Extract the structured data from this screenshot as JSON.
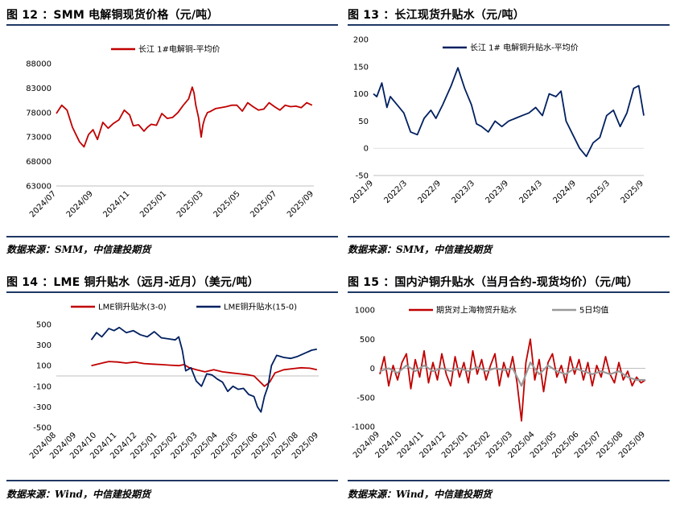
{
  "chart_data": [
    {
      "type": "line",
      "title": "图 12 ：SMM 电解铜现货价格（元/吨）",
      "source": "数据来源：SMM，中信建投期货",
      "ylim": [
        63000,
        88000
      ],
      "yticks": [
        63000,
        68000,
        73000,
        78000,
        83000,
        88000
      ],
      "xticks": [
        "2024/07",
        "2024/09",
        "2024/11",
        "2025/01",
        "2025/03",
        "2025/05",
        "2025/07",
        "2025/09"
      ],
      "legend": "top",
      "series": [
        {
          "name": "长江 1#电解铜-平均价",
          "color": "#c00000",
          "x": [
            0,
            0.3,
            0.6,
            0.9,
            1.1,
            1.3,
            1.55,
            1.8,
            2.05,
            2.3,
            2.6,
            2.9,
            3.2,
            3.5,
            3.8,
            4.1,
            4.3,
            4.6,
            4.9,
            5.1,
            5.3,
            5.6,
            5.9,
            6.2,
            6.5,
            6.8,
            7.1,
            7.4,
            7.6,
            7.7,
            7.8,
            7.95,
            8.1,
            8.2,
            8.3,
            8.45,
            8.6,
            8.9,
            9.2,
            9.5,
            9.8,
            10.1,
            10.4,
            10.7,
            11.0,
            11.3,
            11.6,
            11.9,
            12.2,
            12.5,
            12.8,
            13.1,
            13.4,
            13.7,
            14.0,
            14.3
          ],
          "y": [
            77800,
            79500,
            78500,
            75000,
            73500,
            72000,
            71000,
            73500,
            74500,
            72500,
            76000,
            74800,
            75800,
            76500,
            78500,
            77500,
            75300,
            75500,
            74200,
            75000,
            75600,
            75400,
            77800,
            76800,
            77000,
            78000,
            79500,
            80800,
            83200,
            82000,
            79500,
            77000,
            73000,
            75500,
            76800,
            78000,
            78200,
            78800,
            79000,
            79200,
            79500,
            79500,
            78300,
            80000,
            79200,
            78500,
            78700,
            80000,
            79200,
            78500,
            79500,
            79200,
            79300,
            79000,
            80000,
            79500
          ]
        }
      ]
    },
    {
      "type": "line",
      "title": "图 13 ：长江现货升贴水（元/吨）",
      "source": "数据来源：SMM，中信建投期货",
      "ylim": [
        -50,
        200
      ],
      "yticks": [
        -50,
        0,
        50,
        100,
        150,
        200
      ],
      "xticks": [
        "2021/9",
        "2022/3",
        "2022/9",
        "2023/3",
        "2023/9",
        "2024/3",
        "2024/9",
        "2025/3",
        "2025/9"
      ],
      "legend": "top",
      "series": [
        {
          "name": "长江 1# 电解铜升贴水-平均价",
          "color": "#002060",
          "x": [
            0,
            0.1,
            0.25,
            0.4,
            0.5,
            0.7,
            0.9,
            1.1,
            1.3,
            1.5,
            1.7,
            1.85,
            2.05,
            2.3,
            2.5,
            2.7,
            2.9,
            3.05,
            3.2,
            3.4,
            3.6,
            3.8,
            4.0,
            4.2,
            4.4,
            4.6,
            4.8,
            5.0,
            5.2,
            5.4,
            5.55,
            5.7,
            5.9,
            6.1,
            6.3,
            6.5,
            6.7,
            6.9,
            7.1,
            7.3,
            7.5,
            7.7,
            7.85,
            8.0
          ],
          "y": [
            100,
            95,
            120,
            75,
            95,
            80,
            65,
            30,
            25,
            55,
            70,
            55,
            80,
            115,
            148,
            110,
            80,
            45,
            40,
            30,
            50,
            40,
            50,
            55,
            60,
            65,
            75,
            60,
            100,
            95,
            105,
            50,
            25,
            0,
            -15,
            10,
            20,
            60,
            70,
            40,
            65,
            110,
            115,
            60
          ]
        }
      ]
    },
    {
      "type": "line",
      "title": "图 14 ：LME 铜升贴水（远月-近月）（美元/吨）",
      "source": "数据来源：Wind，中信建投期货",
      "ylim": [
        -500,
        500
      ],
      "yticks": [
        -500,
        -300,
        -100,
        100,
        300,
        500
      ],
      "xticks": [
        "2024/08",
        "2024/09",
        "2024/10",
        "2024/11",
        "2024/12",
        "2025/01",
        "2025/02",
        "2025/03",
        "2025/04",
        "2025/05",
        "2025/06",
        "2025/07",
        "2025/08",
        "2025/09"
      ],
      "legend": "top",
      "series": [
        {
          "name": "LME铜升贴水(3-0)",
          "color": "#c00000",
          "x": [
            1.0,
            1.5,
            2.0,
            2.5,
            3.0,
            3.5,
            4.0,
            4.5,
            5.0,
            5.5,
            6.0,
            6.3,
            6.6,
            7.0,
            7.5,
            8.0,
            8.5,
            9.0,
            9.5,
            10.0,
            10.3,
            10.6,
            10.9,
            11.2,
            11.5,
            12.0,
            12.5,
            13.0,
            13.5,
            13.9
          ],
          "y": [
            100,
            120,
            140,
            135,
            125,
            135,
            120,
            115,
            110,
            105,
            100,
            110,
            80,
            60,
            40,
            60,
            40,
            30,
            20,
            10,
            0,
            -50,
            -100,
            -60,
            30,
            60,
            70,
            80,
            75,
            60
          ]
        },
        {
          "name": "LME铜升贴水(15-0)",
          "color": "#002060",
          "x": [
            1.0,
            1.3,
            1.6,
            2.0,
            2.3,
            2.6,
            3.0,
            3.4,
            3.8,
            4.2,
            4.6,
            5.0,
            5.4,
            5.8,
            6.0,
            6.2,
            6.4,
            6.7,
            7.0,
            7.3,
            7.6,
            7.9,
            8.2,
            8.5,
            8.8,
            9.1,
            9.4,
            9.7,
            10.0,
            10.3,
            10.5,
            10.7,
            10.9,
            11.1,
            11.3,
            11.6,
            12.0,
            12.4,
            12.8,
            13.2,
            13.6,
            13.9
          ],
          "y": [
            350,
            420,
            380,
            460,
            440,
            470,
            420,
            440,
            400,
            380,
            430,
            370,
            360,
            350,
            380,
            250,
            50,
            80,
            -50,
            -100,
            20,
            10,
            -30,
            -60,
            -150,
            -100,
            -130,
            -120,
            -180,
            -200,
            -300,
            -350,
            -200,
            -100,
            100,
            200,
            180,
            170,
            190,
            220,
            250,
            260
          ]
        }
      ]
    },
    {
      "type": "line",
      "title": "图 15 ：国内沪铜升贴水（当月合约-现货均价）（元/吨）",
      "source": "数据来源：Wind，中信建投期货",
      "ylim": [
        -1000,
        1000
      ],
      "yticks": [
        -1000,
        -500,
        0,
        500,
        1000
      ],
      "xticks": [
        "2024/09",
        "2024/10",
        "2024/11",
        "2024/12",
        "2025/01",
        "2025/02",
        "2025/03",
        "2025/04",
        "2025/05",
        "2025/06",
        "2025/07",
        "2025/08",
        "2025/09"
      ],
      "legend": "top",
      "series": [
        {
          "name": "期货对上海物贸升贴水",
          "color": "#c00000",
          "x": [
            0,
            0.2,
            0.4,
            0.6,
            0.8,
            1.0,
            1.2,
            1.4,
            1.6,
            1.8,
            2.0,
            2.2,
            2.4,
            2.6,
            2.8,
            3.0,
            3.2,
            3.4,
            3.6,
            3.8,
            4.0,
            4.2,
            4.4,
            4.6,
            4.8,
            5.0,
            5.2,
            5.4,
            5.6,
            5.8,
            6.0,
            6.2,
            6.4,
            6.6,
            6.8,
            7.0,
            7.2,
            7.4,
            7.6,
            7.8,
            8.0,
            8.2,
            8.4,
            8.6,
            8.8,
            9.0,
            9.2,
            9.4,
            9.6,
            9.8,
            10.0,
            10.2,
            10.4,
            10.6,
            10.8,
            11.0,
            11.2,
            11.4,
            11.6,
            11.8,
            12.0
          ],
          "y": [
            -100,
            200,
            -300,
            50,
            -200,
            100,
            250,
            -350,
            150,
            -150,
            300,
            -250,
            100,
            -200,
            250,
            -100,
            -300,
            200,
            -150,
            100,
            -250,
            300,
            -100,
            150,
            -200,
            50,
            250,
            -300,
            100,
            -150,
            200,
            -250,
            -900,
            100,
            500,
            -200,
            150,
            -400,
            100,
            250,
            -150,
            50,
            -250,
            200,
            -100,
            150,
            -200,
            100,
            -300,
            50,
            -150,
            200,
            -100,
            -250,
            100,
            -200,
            -50,
            -300,
            -150,
            -250,
            -200
          ]
        },
        {
          "name": "5日均值",
          "color": "#999999",
          "x": [
            0,
            0.4,
            0.8,
            1.2,
            1.6,
            2.0,
            2.4,
            2.8,
            3.2,
            3.6,
            4.0,
            4.4,
            4.8,
            5.2,
            5.6,
            6.0,
            6.4,
            6.8,
            7.2,
            7.6,
            8.0,
            8.4,
            8.8,
            9.2,
            9.6,
            10.0,
            10.4,
            10.8,
            11.2,
            11.6,
            12.0
          ],
          "y": [
            -50,
            0,
            -80,
            50,
            -50,
            50,
            -50,
            0,
            -50,
            0,
            -50,
            20,
            -50,
            0,
            -30,
            0,
            -300,
            100,
            -100,
            50,
            -50,
            -100,
            0,
            -50,
            -100,
            -50,
            -100,
            -50,
            -150,
            -200,
            -200
          ]
        }
      ]
    }
  ]
}
